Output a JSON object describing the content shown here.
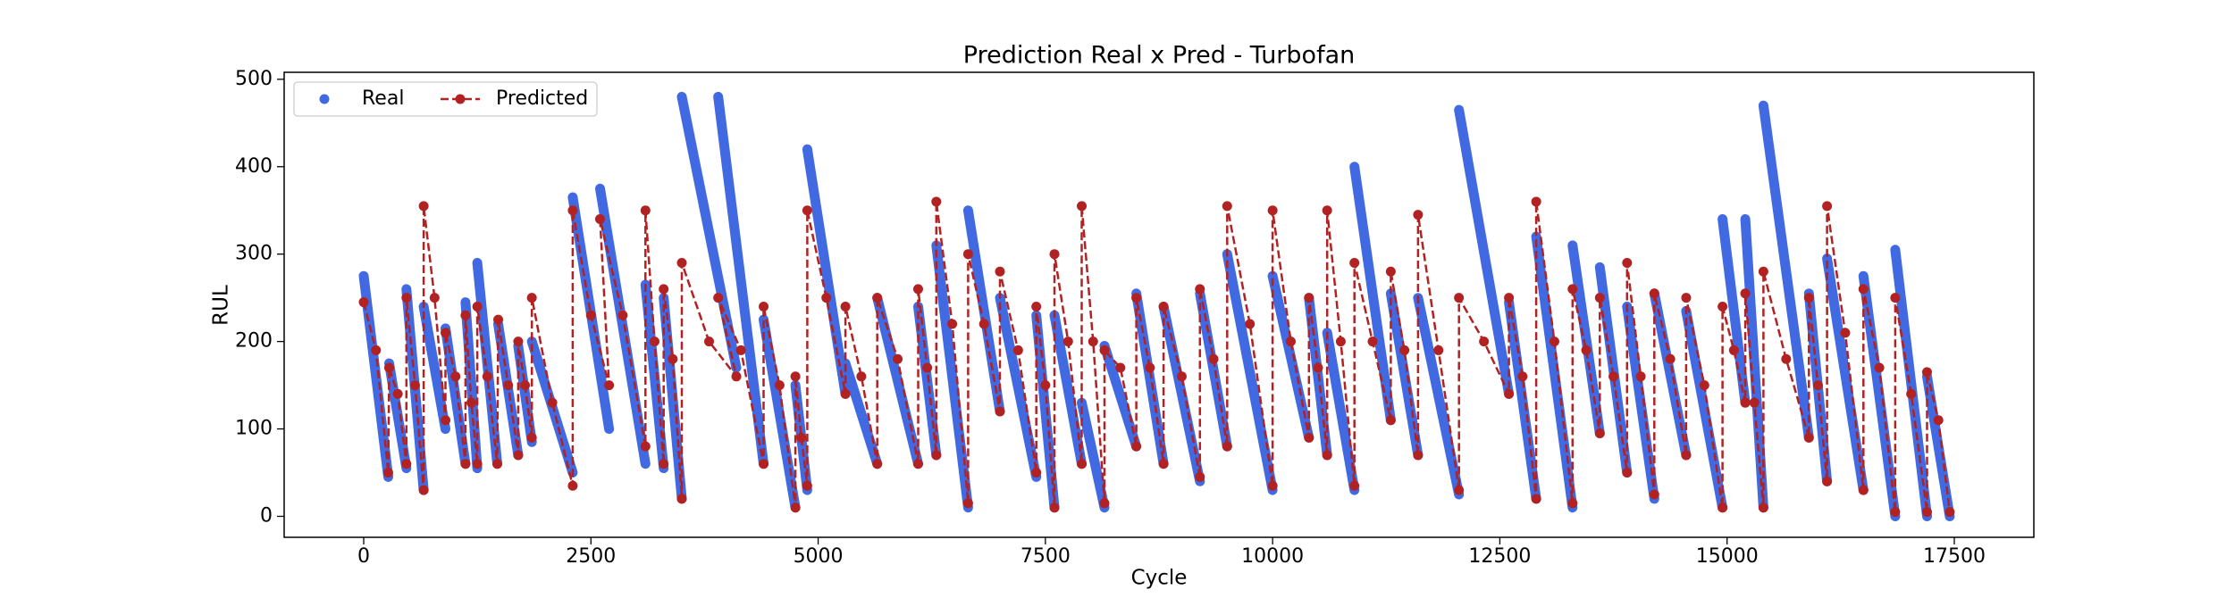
{
  "chart_data": {
    "type": "scatter-line",
    "title": "Prediction Real x Pred - Turbofan",
    "x_label": "Cycle",
    "y_label": "RUL",
    "xlim": [
      -875,
      18375
    ],
    "ylim": [
      -24,
      508
    ],
    "xticks": [
      0,
      2500,
      5000,
      7500,
      10000,
      12500,
      15000,
      17500
    ],
    "yticks": [
      0,
      100,
      200,
      300,
      400,
      500
    ],
    "legend": "upper left",
    "series": [
      {
        "name": "Real",
        "color": "#4169e1",
        "style": "markers",
        "x": [
          0,
          270,
          null,
          280,
          470,
          null,
          470,
          660,
          null,
          660,
          900,
          null,
          900,
          1120,
          null,
          1120,
          1250,
          null,
          1250,
          1470,
          null,
          1480,
          1700,
          null,
          1700,
          1850,
          null,
          1850,
          2300,
          null,
          2300,
          2700,
          null,
          2600,
          3100,
          null,
          3100,
          3300,
          null,
          3300,
          3500,
          null,
          3500,
          4100,
          null,
          3900,
          4400,
          null,
          4400,
          4750,
          null,
          4750,
          4880,
          null,
          4880,
          5300,
          null,
          5300,
          5650,
          null,
          5650,
          6100,
          null,
          6100,
          6300,
          null,
          6300,
          6650,
          null,
          6650,
          7000,
          null,
          7000,
          7400,
          null,
          7400,
          7600,
          null,
          7600,
          7900,
          null,
          7900,
          8150,
          null,
          8150,
          8500,
          null,
          8500,
          8800,
          null,
          8800,
          9200,
          null,
          9200,
          9500,
          null,
          9500,
          10000,
          null,
          10000,
          10400,
          null,
          10400,
          10600,
          null,
          10600,
          10900,
          null,
          10900,
          11300,
          null,
          11300,
          11600,
          null,
          11600,
          12050,
          null,
          12050,
          12600,
          null,
          12600,
          12900,
          null,
          12900,
          13300,
          null,
          13300,
          13600,
          null,
          13600,
          13900,
          null,
          13900,
          14200,
          null,
          14200,
          14550,
          null,
          14550,
          14950,
          null,
          14950,
          15200,
          null,
          15200,
          15400,
          null,
          15400,
          15900,
          null,
          15900,
          16100,
          null,
          16100,
          16500,
          null,
          16500,
          16850,
          null,
          16850,
          17200,
          null,
          17200,
          17450
        ],
        "values": [
          275,
          45,
          null,
          175,
          55,
          null,
          260,
          30,
          null,
          240,
          100,
          null,
          215,
          60,
          null,
          245,
          55,
          null,
          290,
          60,
          null,
          220,
          70,
          null,
          195,
          85,
          null,
          200,
          50,
          null,
          365,
          100,
          null,
          375,
          60,
          null,
          265,
          55,
          null,
          250,
          20,
          null,
          480,
          170,
          null,
          480,
          60,
          null,
          225,
          10,
          null,
          150,
          30,
          null,
          420,
          140,
          null,
          175,
          60,
          null,
          250,
          60,
          null,
          240,
          70,
          null,
          310,
          10,
          null,
          350,
          120,
          null,
          250,
          45,
          null,
          230,
          10,
          null,
          230,
          60,
          null,
          130,
          10,
          null,
          195,
          80,
          null,
          255,
          60,
          null,
          240,
          40,
          null,
          255,
          80,
          null,
          300,
          30,
          null,
          275,
          90,
          null,
          250,
          70,
          null,
          210,
          30,
          null,
          400,
          110,
          null,
          255,
          70,
          null,
          250,
          25,
          null,
          465,
          140,
          null,
          245,
          20,
          null,
          320,
          10,
          null,
          310,
          95,
          null,
          285,
          50,
          null,
          240,
          20,
          null,
          255,
          70,
          null,
          235,
          10,
          null,
          340,
          130,
          null,
          340,
          10,
          null,
          470,
          90,
          null,
          255,
          40,
          null,
          295,
          30,
          null,
          275,
          0,
          null,
          305,
          0,
          null,
          160,
          0
        ]
      },
      {
        "name": "Predicted",
        "color": "#b22222",
        "style": "dashed-line-markers",
        "x": [
          0,
          135,
          270,
          280,
          375,
          470,
          470,
          565,
          660,
          660,
          780,
          900,
          900,
          1010,
          1120,
          1120,
          1185,
          1250,
          1250,
          1360,
          1470,
          1480,
          1590,
          1700,
          1700,
          1775,
          1850,
          1850,
          2075,
          2300,
          2300,
          2500,
          2700,
          2600,
          2850,
          3100,
          3100,
          3200,
          3300,
          3300,
          3400,
          3500,
          3500,
          3800,
          4100,
          3900,
          4150,
          4400,
          4400,
          4575,
          4750,
          4750,
          4815,
          4880,
          4880,
          5090,
          5300,
          5300,
          5475,
          5650,
          5650,
          5875,
          6100,
          6100,
          6200,
          6300,
          6300,
          6475,
          6650,
          6650,
          6825,
          7000,
          7000,
          7200,
          7400,
          7400,
          7500,
          7600,
          7600,
          7750,
          7900,
          7900,
          8025,
          8150,
          8150,
          8325,
          8500,
          8500,
          8650,
          8800,
          8800,
          9000,
          9200,
          9200,
          9350,
          9500,
          9500,
          9750,
          10000,
          10000,
          10200,
          10400,
          10400,
          10500,
          10600,
          10600,
          10750,
          10900,
          10900,
          11100,
          11300,
          11300,
          11450,
          11600,
          11600,
          11825,
          12050,
          12050,
          12325,
          12600,
          12600,
          12750,
          12900,
          12900,
          13100,
          13300,
          13300,
          13450,
          13600,
          13600,
          13750,
          13900,
          13900,
          14050,
          14200,
          14200,
          14375,
          14550,
          14550,
          14750,
          14950,
          14950,
          15075,
          15200,
          15200,
          15300,
          15400,
          15400,
          15650,
          15900,
          15900,
          16000,
          16100,
          16100,
          16300,
          16500,
          16500,
          16675,
          16850,
          16850,
          17025,
          17200,
          17200,
          17325,
          17450
        ],
        "values": [
          245,
          190,
          50,
          170,
          140,
          60,
          250,
          150,
          30,
          355,
          250,
          110,
          210,
          160,
          60,
          230,
          130,
          60,
          240,
          160,
          60,
          225,
          150,
          70,
          200,
          150,
          90,
          250,
          130,
          35,
          350,
          230,
          150,
          340,
          230,
          80,
          350,
          200,
          60,
          260,
          180,
          20,
          290,
          200,
          160,
          250,
          190,
          60,
          240,
          150,
          10,
          160,
          90,
          35,
          350,
          250,
          140,
          240,
          160,
          60,
          250,
          180,
          60,
          260,
          170,
          70,
          360,
          220,
          15,
          300,
          220,
          120,
          280,
          190,
          50,
          240,
          150,
          10,
          300,
          200,
          60,
          355,
          200,
          15,
          190,
          170,
          80,
          250,
          170,
          60,
          240,
          160,
          45,
          260,
          180,
          80,
          355,
          220,
          35,
          350,
          200,
          90,
          250,
          170,
          70,
          350,
          200,
          35,
          290,
          200,
          110,
          280,
          190,
          70,
          345,
          190,
          30,
          250,
          200,
          140,
          250,
          160,
          20,
          360,
          200,
          15,
          260,
          190,
          95,
          250,
          160,
          50,
          290,
          160,
          25,
          255,
          180,
          70,
          250,
          150,
          10,
          240,
          190,
          130,
          255,
          130,
          10,
          280,
          180,
          90,
          250,
          150,
          40,
          355,
          210,
          30,
          260,
          170,
          5,
          250,
          140,
          5,
          165,
          110,
          5
        ]
      }
    ]
  }
}
